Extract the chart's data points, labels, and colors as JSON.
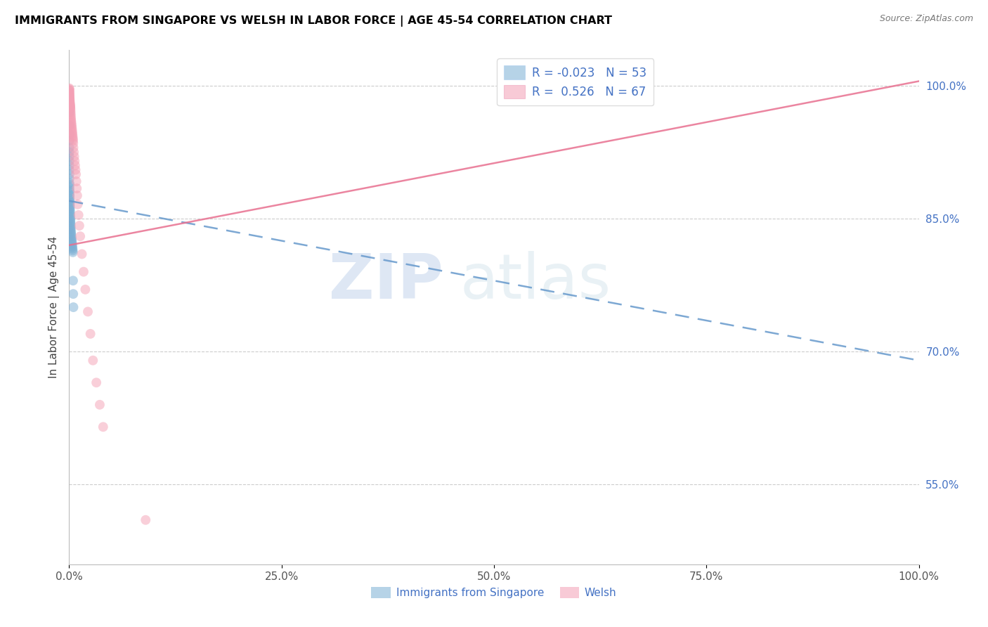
{
  "title": "IMMIGRANTS FROM SINGAPORE VS WELSH IN LABOR FORCE | AGE 45-54 CORRELATION CHART",
  "source": "Source: ZipAtlas.com",
  "ylabel": "In Labor Force | Age 45-54",
  "y_ticks": [
    0.55,
    0.7,
    0.85,
    1.0
  ],
  "y_tick_labels": [
    "55.0%",
    "70.0%",
    "85.0%",
    "100.0%"
  ],
  "x_ticks": [
    0.0,
    0.25,
    0.5,
    0.75,
    1.0
  ],
  "x_tick_labels": [
    "0.0%",
    "25.0%",
    "50.0%",
    "75.0%",
    "100.0%"
  ],
  "singapore_color": "#7bafd4",
  "welsh_color": "#f4a0b5",
  "singapore_line_color": "#6699cc",
  "welsh_line_color": "#e87090",
  "R_singapore": -0.023,
  "R_welsh": 0.526,
  "N_singapore": 53,
  "N_welsh": 67,
  "sg_x": [
    0.0002,
    0.0002,
    0.0002,
    0.0002,
    0.0002,
    0.0002,
    0.0002,
    0.0002,
    0.0002,
    0.0002,
    0.0003,
    0.0003,
    0.0003,
    0.0004,
    0.0004,
    0.0004,
    0.0005,
    0.0005,
    0.0006,
    0.0006,
    0.0007,
    0.0007,
    0.0008,
    0.0008,
    0.0009,
    0.0009,
    0.001,
    0.001,
    0.0011,
    0.0012,
    0.0013,
    0.0014,
    0.0015,
    0.0016,
    0.0017,
    0.0018,
    0.0019,
    0.002,
    0.0022,
    0.0024,
    0.0026,
    0.0028,
    0.003,
    0.0032,
    0.0034,
    0.0036,
    0.0038,
    0.004,
    0.0042,
    0.0044,
    0.0046,
    0.0048,
    0.005
  ],
  "sg_y": [
    0.97,
    0.955,
    0.945,
    0.938,
    0.93,
    0.925,
    0.92,
    0.915,
    0.91,
    0.905,
    0.9,
    0.895,
    0.89,
    0.888,
    0.885,
    0.882,
    0.88,
    0.877,
    0.875,
    0.872,
    0.87,
    0.868,
    0.866,
    0.864,
    0.862,
    0.86,
    0.858,
    0.856,
    0.854,
    0.852,
    0.85,
    0.848,
    0.846,
    0.844,
    0.842,
    0.84,
    0.838,
    0.836,
    0.834,
    0.832,
    0.83,
    0.828,
    0.826,
    0.824,
    0.822,
    0.82,
    0.818,
    0.816,
    0.814,
    0.812,
    0.78,
    0.765,
    0.75
  ],
  "w_x": [
    0.0002,
    0.0002,
    0.0002,
    0.0002,
    0.0002,
    0.0003,
    0.0003,
    0.0003,
    0.0004,
    0.0004,
    0.0005,
    0.0005,
    0.0006,
    0.0006,
    0.0007,
    0.0007,
    0.0008,
    0.0009,
    0.001,
    0.0011,
    0.0012,
    0.0013,
    0.0014,
    0.0015,
    0.0016,
    0.0017,
    0.0018,
    0.0019,
    0.002,
    0.0022,
    0.0024,
    0.0026,
    0.0028,
    0.003,
    0.0032,
    0.0034,
    0.0036,
    0.0038,
    0.004,
    0.0042,
    0.0044,
    0.0046,
    0.0048,
    0.005,
    0.0055,
    0.006,
    0.0065,
    0.007,
    0.0075,
    0.008,
    0.0085,
    0.009,
    0.0095,
    0.01,
    0.011,
    0.012,
    0.013,
    0.015,
    0.017,
    0.019,
    0.022,
    0.025,
    0.028,
    0.032,
    0.036,
    0.04,
    0.09
  ],
  "w_y": [
    0.997,
    0.996,
    0.995,
    0.994,
    0.993,
    0.992,
    0.991,
    0.99,
    0.989,
    0.988,
    0.987,
    0.986,
    0.985,
    0.984,
    0.983,
    0.982,
    0.981,
    0.98,
    0.979,
    0.978,
    0.977,
    0.976,
    0.975,
    0.974,
    0.972,
    0.97,
    0.968,
    0.966,
    0.964,
    0.962,
    0.96,
    0.958,
    0.956,
    0.954,
    0.952,
    0.95,
    0.948,
    0.946,
    0.944,
    0.942,
    0.94,
    0.938,
    0.935,
    0.93,
    0.925,
    0.92,
    0.915,
    0.91,
    0.905,
    0.9,
    0.892,
    0.884,
    0.876,
    0.866,
    0.854,
    0.842,
    0.83,
    0.81,
    0.79,
    0.77,
    0.745,
    0.72,
    0.69,
    0.665,
    0.64,
    0.615,
    0.51
  ],
  "sg_trend_x0": 0.0,
  "sg_trend_x1": 1.0,
  "sg_trend_y0": 0.87,
  "sg_trend_y1": 0.69,
  "w_trend_x0": 0.0,
  "w_trend_x1": 1.0,
  "w_trend_y0": 0.82,
  "w_trend_y1": 1.005
}
